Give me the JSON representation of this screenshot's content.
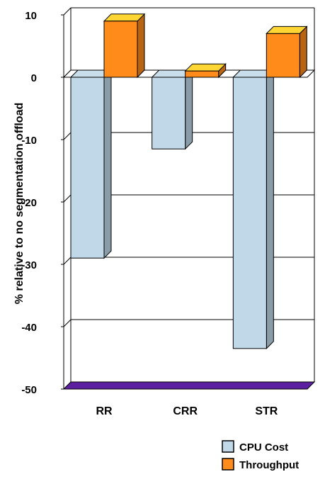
{
  "chart_data": {
    "type": "bar",
    "style": "3d-clustered-column",
    "categories": [
      "RR",
      "CRR",
      "STR"
    ],
    "series": [
      {
        "name": "CPU Cost",
        "values": [
          -29,
          -11.5,
          -43.5
        ],
        "color": "#c0d8e8"
      },
      {
        "name": "Throughput",
        "values": [
          9,
          1,
          7
        ],
        "color": "#ff8c1a"
      }
    ],
    "ylabel": "% relative to no segmentation offload",
    "ylim": [
      -50,
      10
    ],
    "yticks": [
      -50,
      -40,
      -30,
      -20,
      -10,
      0,
      10
    ],
    "grid": true,
    "legend_position": "bottom-right",
    "floor_color": "#5b1fa0"
  }
}
